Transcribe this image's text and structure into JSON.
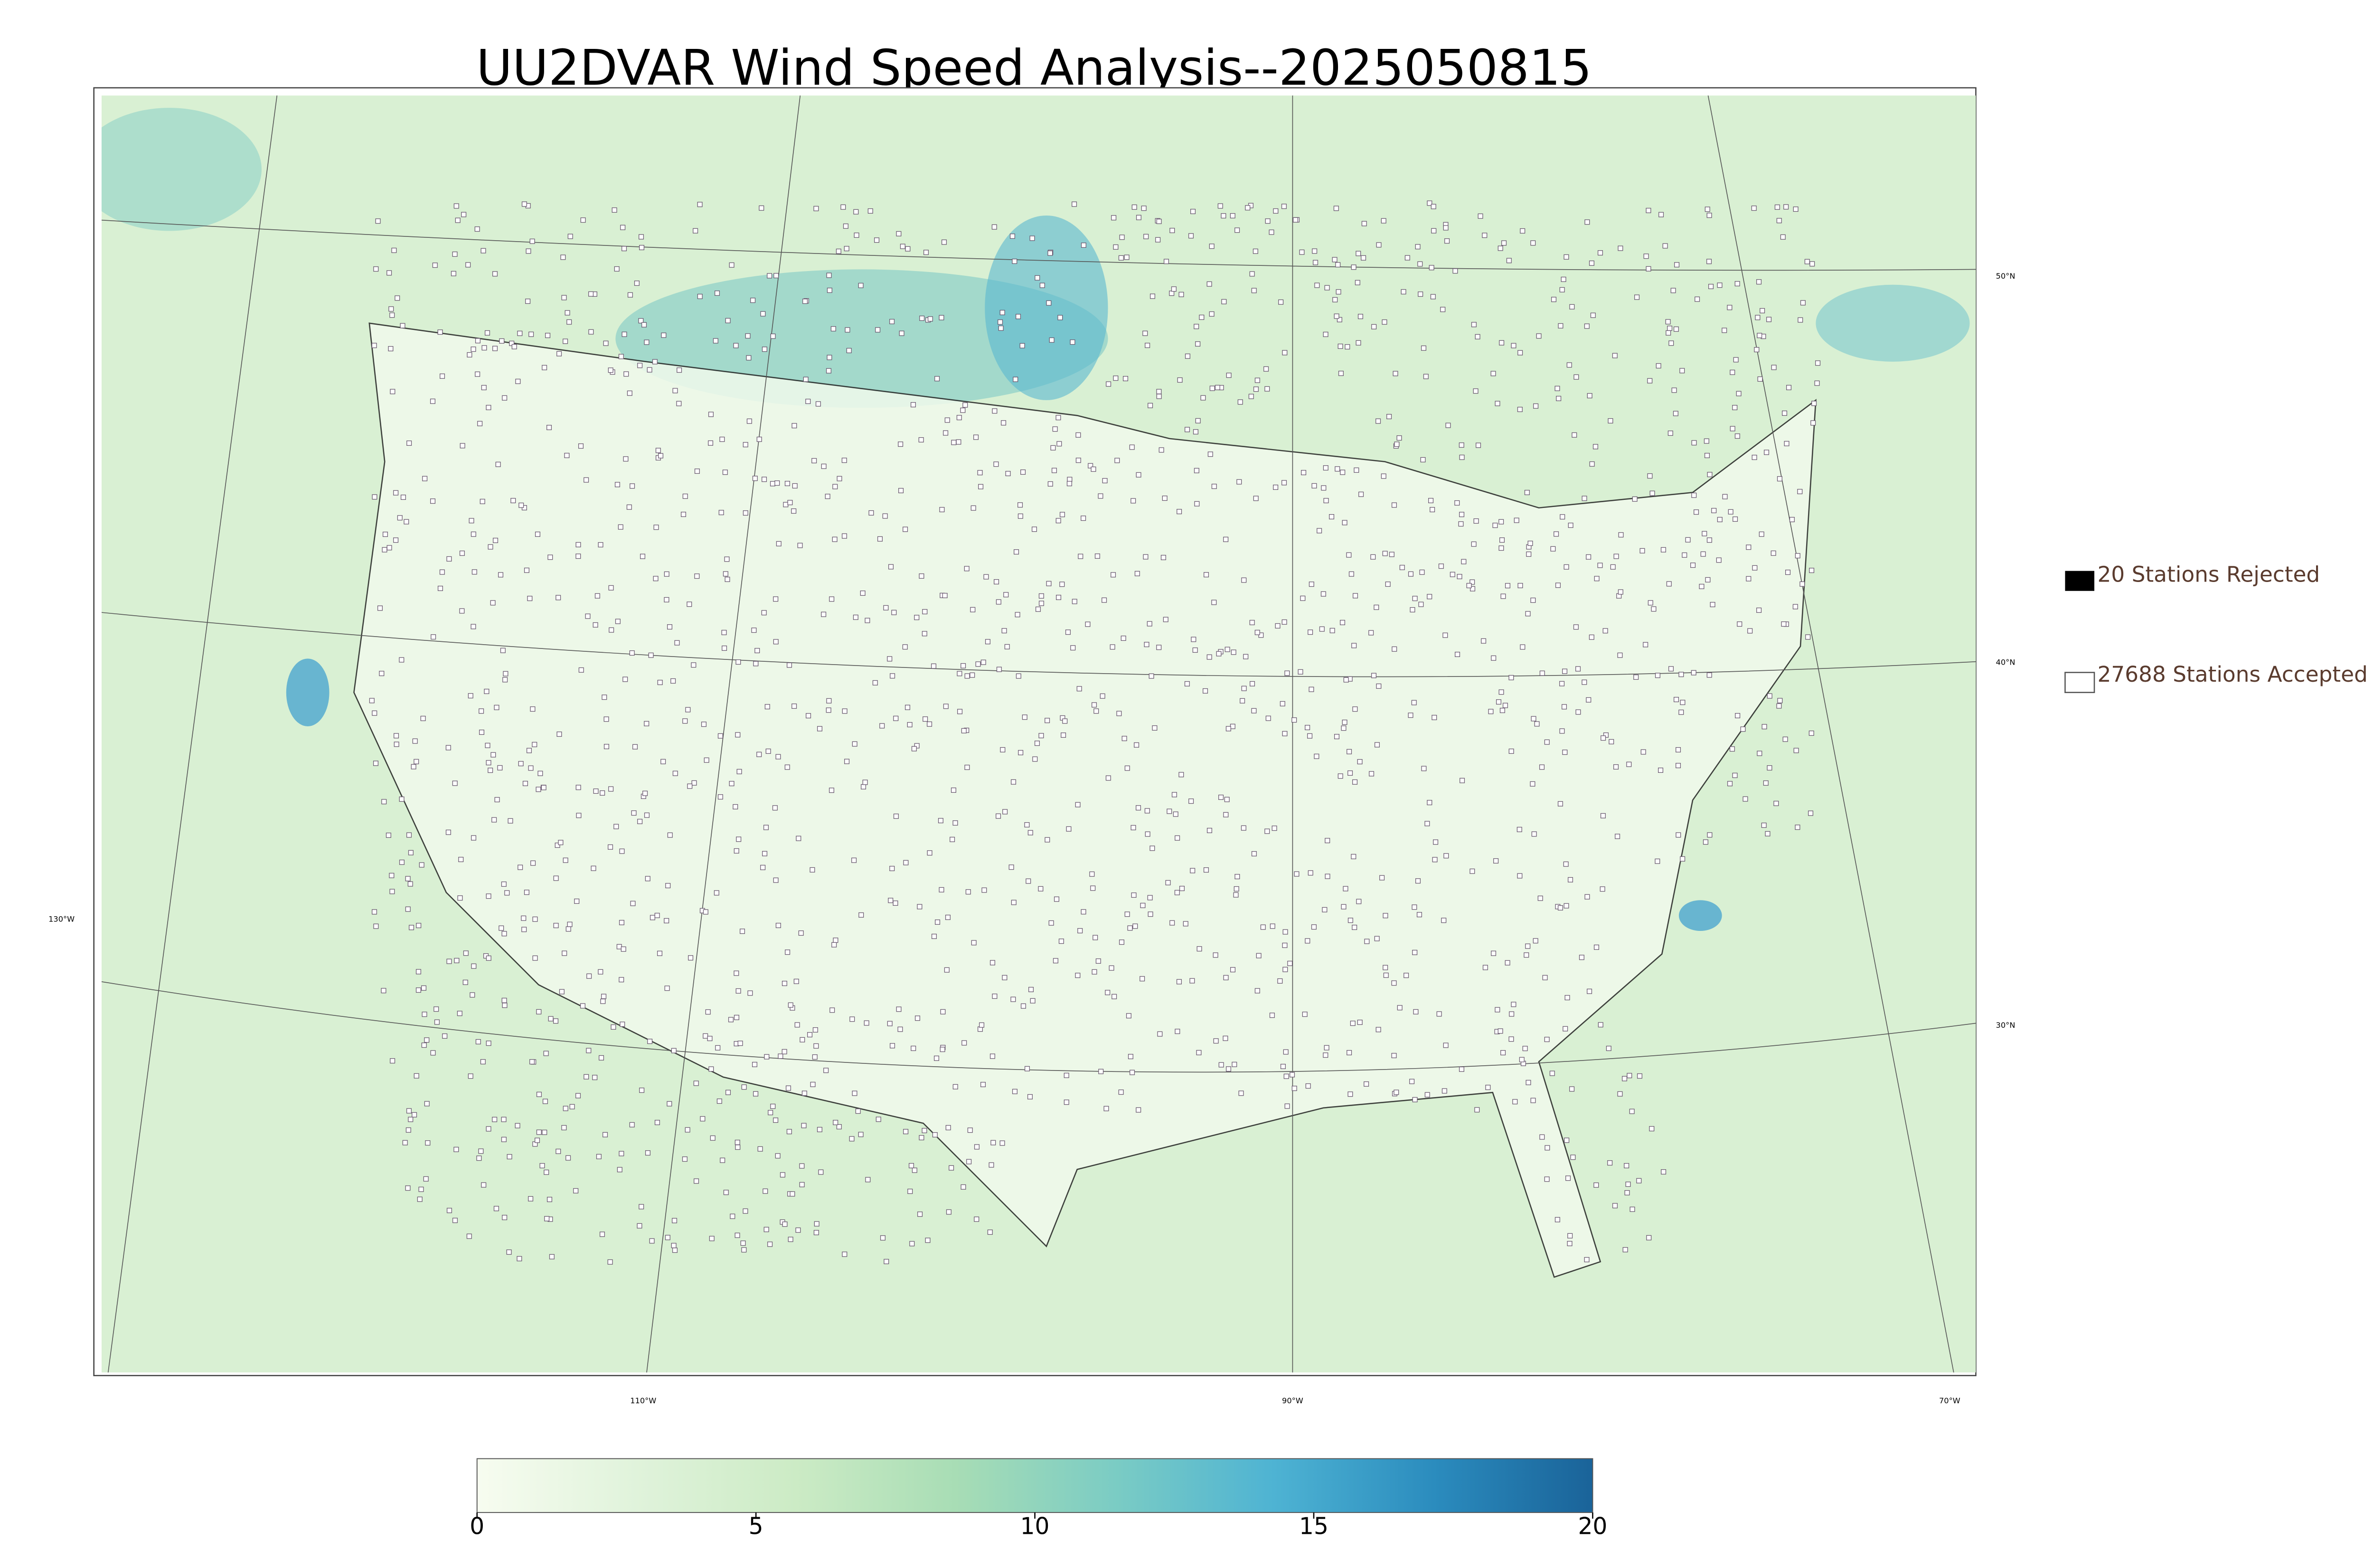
{
  "map": {
    "title": "UU2DVAR Wind Speed Analysis--2025050815",
    "lat_labels": [
      "50°N",
      "40°N",
      "30°N"
    ],
    "lon_labels": [
      "130°W",
      "110°W",
      "90°W",
      "70°W"
    ],
    "legend": [
      "20 Stations Rejected",
      "27688 Stations Accepted"
    ],
    "colorbar": {
      "lim": [
        0,
        20
      ],
      "ticks": [
        0,
        5,
        10,
        15,
        20
      ],
      "colors": [
        "#f7fcf0",
        "#e0f3db",
        "#ccebc5",
        "#a8ddb5",
        "#7bccc4",
        "#4eb3d3",
        "#2b8cbe",
        "#1a6399"
      ]
    }
  }
}
